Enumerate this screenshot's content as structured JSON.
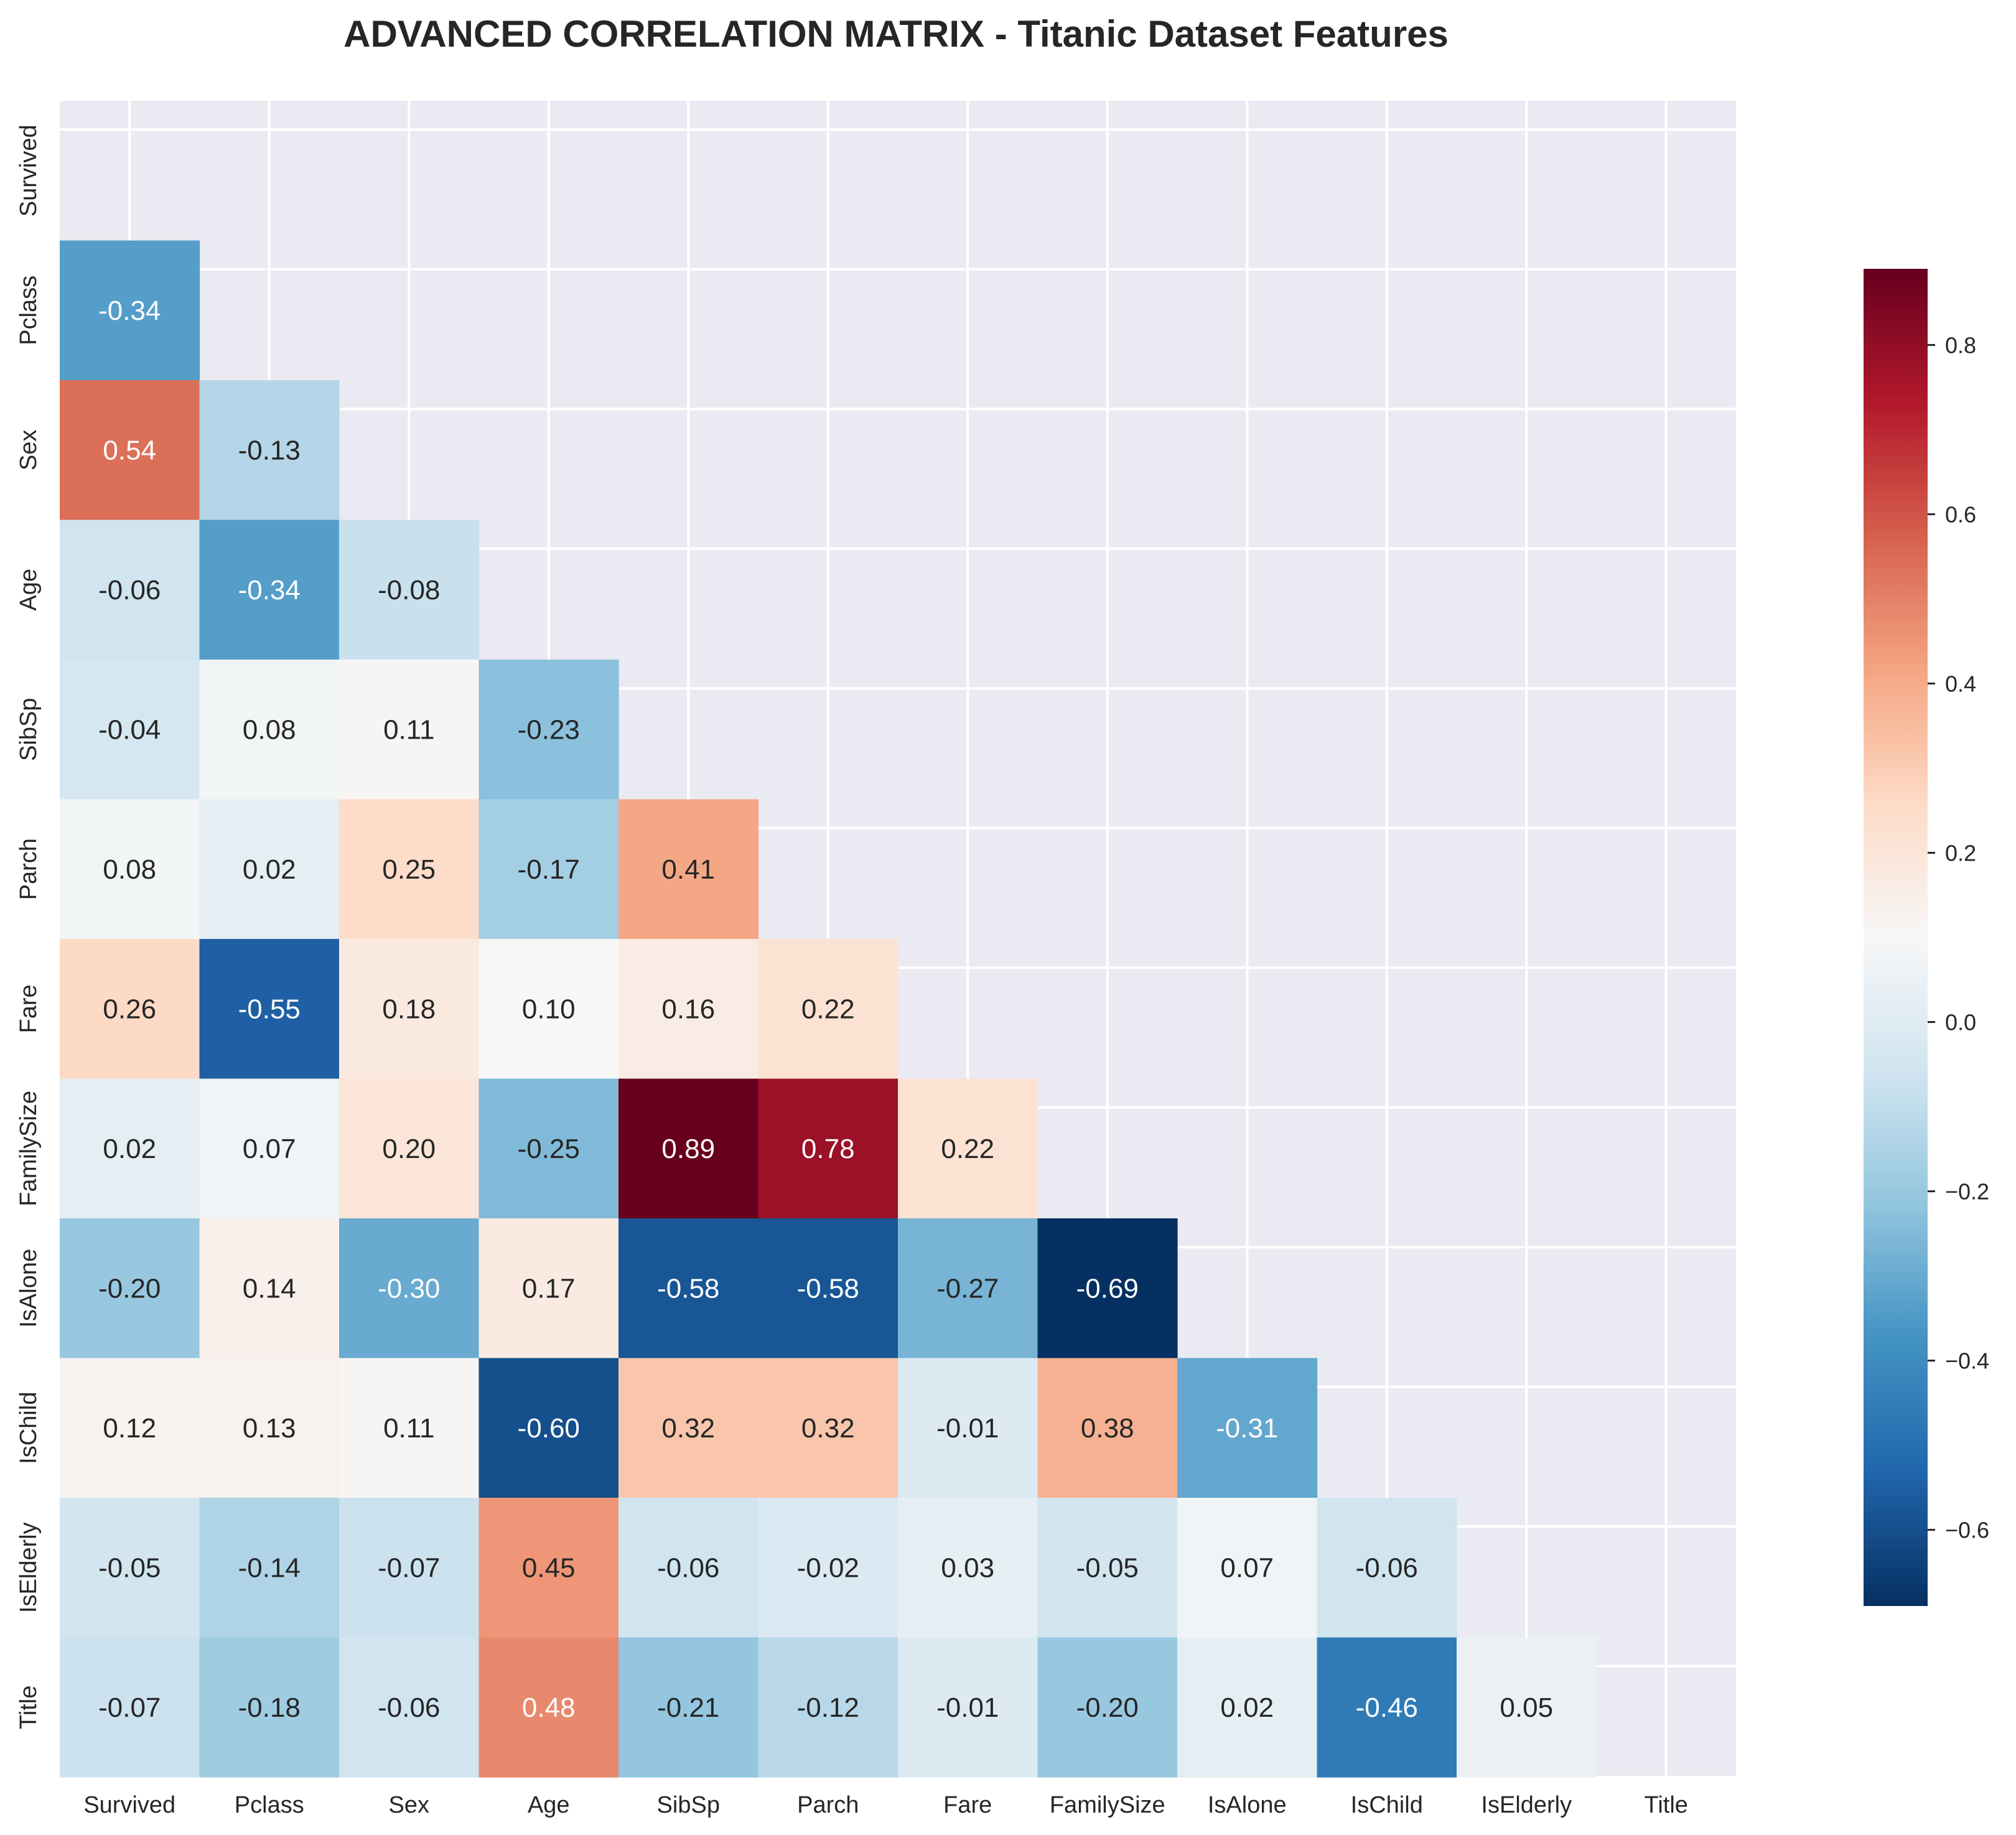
{
  "chart_data": {
    "type": "heatmap",
    "title": "ADVANCED CORRELATION MATRIX - Titanic Dataset Features",
    "variables": [
      "Survived",
      "Pclass",
      "Sex",
      "Age",
      "SibSp",
      "Parch",
      "Fare",
      "FamilySize",
      "IsAlone",
      "IsChild",
      "IsElderly",
      "Title"
    ],
    "mask": "upper-triangle-including-diagonal",
    "matrix": [
      [
        null,
        null,
        null,
        null,
        null,
        null,
        null,
        null,
        null,
        null,
        null,
        null
      ],
      [
        -0.34,
        null,
        null,
        null,
        null,
        null,
        null,
        null,
        null,
        null,
        null,
        null
      ],
      [
        0.54,
        -0.13,
        null,
        null,
        null,
        null,
        null,
        null,
        null,
        null,
        null,
        null
      ],
      [
        -0.06,
        -0.34,
        -0.08,
        null,
        null,
        null,
        null,
        null,
        null,
        null,
        null,
        null
      ],
      [
        -0.04,
        0.08,
        0.11,
        -0.23,
        null,
        null,
        null,
        null,
        null,
        null,
        null,
        null
      ],
      [
        0.08,
        0.02,
        0.25,
        -0.17,
        0.41,
        null,
        null,
        null,
        null,
        null,
        null,
        null
      ],
      [
        0.26,
        -0.55,
        0.18,
        0.1,
        0.16,
        0.22,
        null,
        null,
        null,
        null,
        null,
        null
      ],
      [
        0.02,
        0.07,
        0.2,
        -0.25,
        0.89,
        0.78,
        0.22,
        null,
        null,
        null,
        null,
        null
      ],
      [
        -0.2,
        0.14,
        -0.3,
        0.17,
        -0.58,
        -0.58,
        -0.27,
        -0.69,
        null,
        null,
        null,
        null
      ],
      [
        0.12,
        0.13,
        0.11,
        -0.6,
        0.32,
        0.32,
        -0.01,
        0.38,
        -0.31,
        null,
        null,
        null
      ],
      [
        -0.05,
        -0.14,
        -0.07,
        0.45,
        -0.06,
        -0.02,
        0.03,
        -0.05,
        0.07,
        -0.06,
        null,
        null
      ],
      [
        -0.07,
        -0.18,
        -0.06,
        0.48,
        -0.21,
        -0.12,
        -0.01,
        -0.2,
        0.02,
        -0.46,
        0.05,
        null
      ]
    ],
    "value_format": "2 decimals",
    "colormap": "RdBu_r",
    "vmin": -0.69,
    "vmax": 0.89,
    "grid": true,
    "colorbar": {
      "ticks": [
        0.8,
        0.6,
        0.4,
        0.2,
        0.0,
        -0.2,
        -0.4,
        -0.6
      ],
      "tick_labels": [
        "0.8",
        "0.6",
        "0.4",
        "0.2",
        "0.0",
        "−0.2",
        "−0.4",
        "−0.6"
      ],
      "placement": "right"
    },
    "colors": {
      "background": "#eaeaf2",
      "grid": "#ffffff",
      "text": "#262626"
    }
  }
}
